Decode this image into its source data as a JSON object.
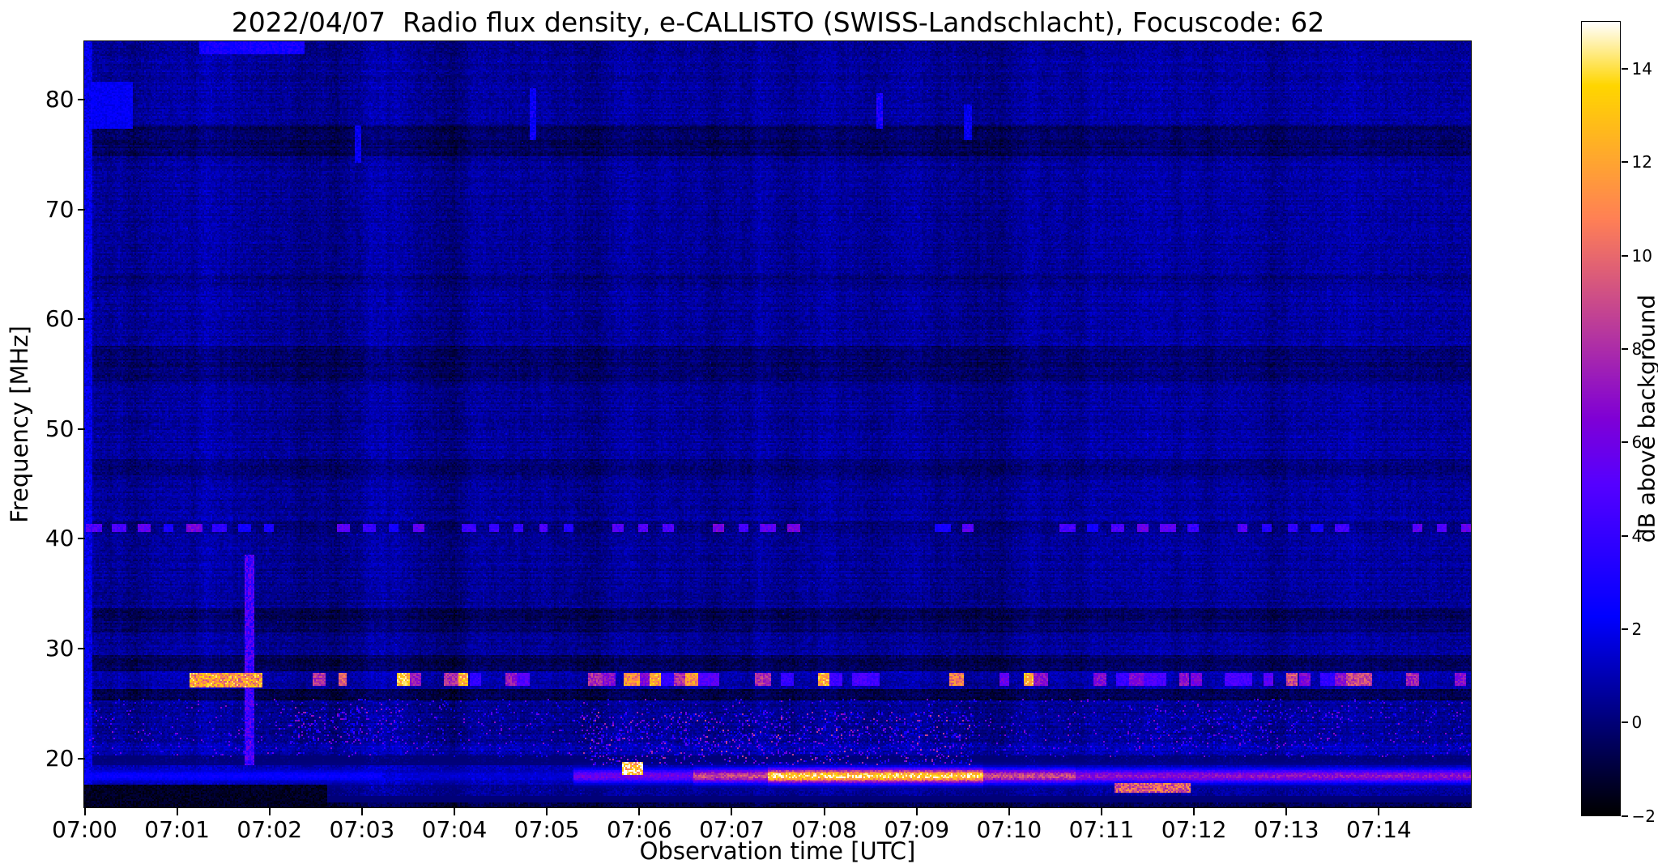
{
  "chart_data": {
    "type": "heatmap",
    "title": "2022/04/07  Radio flux density, e-CALLISTO (SWISS-Landschlacht), Focuscode: 62",
    "xlabel": "Observation time [UTC]",
    "ylabel": "Frequency [MHz]",
    "x_tick_labels": [
      "07:00",
      "07:01",
      "07:02",
      "07:03",
      "07:04",
      "07:05",
      "07:06",
      "07:07",
      "07:08",
      "07:09",
      "07:10",
      "07:11",
      "07:12",
      "07:13",
      "07:14"
    ],
    "x_range_min": [
      0,
      15
    ],
    "y_ticks": [
      80,
      70,
      60,
      50,
      40,
      30,
      20
    ],
    "freq_range": [
      15.5,
      85.3
    ],
    "grid": false,
    "colormap": "gnuplot2",
    "colorbar": {
      "label": "dB above background",
      "ticks": [
        14,
        12,
        10,
        8,
        6,
        4,
        2,
        0,
        -2
      ],
      "vmin": -2,
      "vmax": 15
    },
    "background_db": 0.5,
    "bands": [
      {
        "f0": 15.5,
        "f1": 16.6,
        "db": -0.9
      },
      {
        "f0": 16.6,
        "f1": 17.6,
        "db": 0.2
      },
      {
        "f0": 17.6,
        "f1": 19.4,
        "db": 1.2
      },
      {
        "f0": 19.4,
        "f1": 20.2,
        "db": -0.4
      },
      {
        "f0": 20.2,
        "f1": 21.3,
        "db": 0.9
      },
      {
        "f0": 21.3,
        "f1": 25.3,
        "db": 0.4
      },
      {
        "f0": 25.3,
        "f1": 26.3,
        "db": -0.7
      },
      {
        "f0": 26.3,
        "f1": 27.9,
        "db": 0.7
      },
      {
        "f0": 27.9,
        "f1": 29.3,
        "db": -0.5
      },
      {
        "f0": 29.3,
        "f1": 31.5,
        "db": 0.5
      },
      {
        "f0": 31.5,
        "f1": 32.6,
        "db": -0.2
      },
      {
        "f0": 32.6,
        "f1": 33.6,
        "db": -0.6
      },
      {
        "f0": 33.6,
        "f1": 40.4,
        "db": 0.45
      },
      {
        "f0": 40.4,
        "f1": 41.6,
        "db": 0.1
      },
      {
        "f0": 41.6,
        "f1": 45.8,
        "db": 0.5
      },
      {
        "f0": 45.8,
        "f1": 47.2,
        "db": -0.1
      },
      {
        "f0": 47.2,
        "f1": 54.3,
        "db": 0.5
      },
      {
        "f0": 54.3,
        "f1": 57.6,
        "db": -0.2
      },
      {
        "f0": 57.6,
        "f1": 63.0,
        "db": 0.5
      },
      {
        "f0": 63.0,
        "f1": 64.0,
        "db": 0.2
      },
      {
        "f0": 64.0,
        "f1": 74.8,
        "db": 0.5
      },
      {
        "f0": 74.8,
        "f1": 77.6,
        "db": -0.4
      },
      {
        "f0": 77.6,
        "f1": 85.3,
        "db": 0.55
      }
    ],
    "features": [
      {
        "type": "vline",
        "name": "start-sweep-artifact",
        "t": 0.03,
        "width": 0.05,
        "f0": 15.5,
        "f1": 85.3,
        "db": 2.0
      },
      {
        "type": "blob",
        "name": "blue-patch-80mhz",
        "t0": 0.08,
        "t1": 0.5,
        "f0": 77.5,
        "f1": 81.5,
        "db": 2.2
      },
      {
        "type": "blob",
        "name": "top-edge-smear",
        "t0": 1.25,
        "t1": 2.35,
        "f0": 84.3,
        "f1": 85.3,
        "db": 3.0
      },
      {
        "type": "vline",
        "name": "vertical-burst-0701",
        "t": 1.78,
        "width": 0.07,
        "f0": 19.5,
        "f1": 38.5,
        "db": 4.5
      },
      {
        "type": "blob",
        "name": "bright-27mhz-blob",
        "t0": 1.15,
        "t1": 1.9,
        "f0": 26.6,
        "f1": 27.7,
        "db": 12
      },
      {
        "type": "dotrow",
        "name": "27mhz-interference-dots",
        "f": 27.2,
        "h": 0.9,
        "t0": 2.4,
        "t1": 15,
        "spacing": 0.13,
        "prob": 0.4,
        "db_min": 4,
        "db_max": 14
      },
      {
        "type": "dotrow",
        "name": "41mhz-dotted-line",
        "f": 41.0,
        "h": 0.45,
        "t0": 0.1,
        "t1": 15,
        "spacing": 0.27,
        "prob": 0.7,
        "db_min": 3,
        "db_max": 6.5
      },
      {
        "type": "speckle",
        "name": "low-band-speckle",
        "t0": 0,
        "t1": 15,
        "f0": 20.3,
        "f1": 25.3,
        "prob": 0.05,
        "db_min": 2,
        "db_max": 7
      },
      {
        "type": "speckle",
        "name": "speckle-0702",
        "t0": 2.2,
        "t1": 3.4,
        "f0": 21.5,
        "f1": 24.6,
        "prob": 0.12,
        "db_min": 2,
        "db_max": 8
      },
      {
        "type": "speckle",
        "name": "speckle-0706-0709",
        "t0": 5.4,
        "t1": 9.6,
        "f0": 19.6,
        "f1": 24.2,
        "prob": 0.12,
        "db_min": 2,
        "db_max": 9
      },
      {
        "type": "speckle",
        "name": "speckle-0711-0713",
        "t0": 11.3,
        "t1": 13.6,
        "f0": 21.0,
        "f1": 24.5,
        "prob": 0.09,
        "db_min": 2,
        "db_max": 7
      },
      {
        "type": "continuum",
        "name": "18mhz-continuum-band",
        "f": 18.35,
        "sigma": 0.45,
        "segments": [
          {
            "t0": 0.0,
            "t1": 3.2,
            "db": 2.5
          },
          {
            "t0": 3.2,
            "t1": 5.3,
            "db": 1.5
          },
          {
            "t0": 5.3,
            "t1": 6.6,
            "db": 6
          },
          {
            "t0": 6.6,
            "t1": 7.4,
            "db": 9
          },
          {
            "t0": 7.4,
            "t1": 9.7,
            "db": 14
          },
          {
            "t0": 9.7,
            "t1": 10.7,
            "db": 9
          },
          {
            "t0": 10.7,
            "t1": 15.0,
            "db": 7
          }
        ]
      },
      {
        "type": "blob",
        "name": "yellow-squares-0706",
        "t0": 5.82,
        "t1": 6.02,
        "f0": 18.7,
        "f1": 19.6,
        "db": 14
      },
      {
        "type": "blob",
        "name": "orange-segment-0711",
        "t0": 11.15,
        "t1": 11.95,
        "f0": 17.0,
        "f1": 17.6,
        "db": 10
      },
      {
        "type": "blob",
        "name": "dark-lower-left",
        "t0": 0.0,
        "t1": 2.6,
        "f0": 15.5,
        "f1": 17.5,
        "db": -1.4
      },
      {
        "type": "vline",
        "name": "blue-spike-0702",
        "t": 2.95,
        "width": 0.04,
        "f0": 74.5,
        "f1": 77.5,
        "db": 2.2
      },
      {
        "type": "vline",
        "name": "blue-spike-0704",
        "t": 4.85,
        "width": 0.04,
        "f0": 76.5,
        "f1": 81.0,
        "db": 2.5
      },
      {
        "type": "vline",
        "name": "blue-spike-0708",
        "t": 8.6,
        "width": 0.04,
        "f0": 77.5,
        "f1": 80.5,
        "db": 3.0
      },
      {
        "type": "vline",
        "name": "blue-spike-0709",
        "t": 9.55,
        "width": 0.04,
        "f0": 76.5,
        "f1": 79.5,
        "db": 2.2
      }
    ]
  }
}
